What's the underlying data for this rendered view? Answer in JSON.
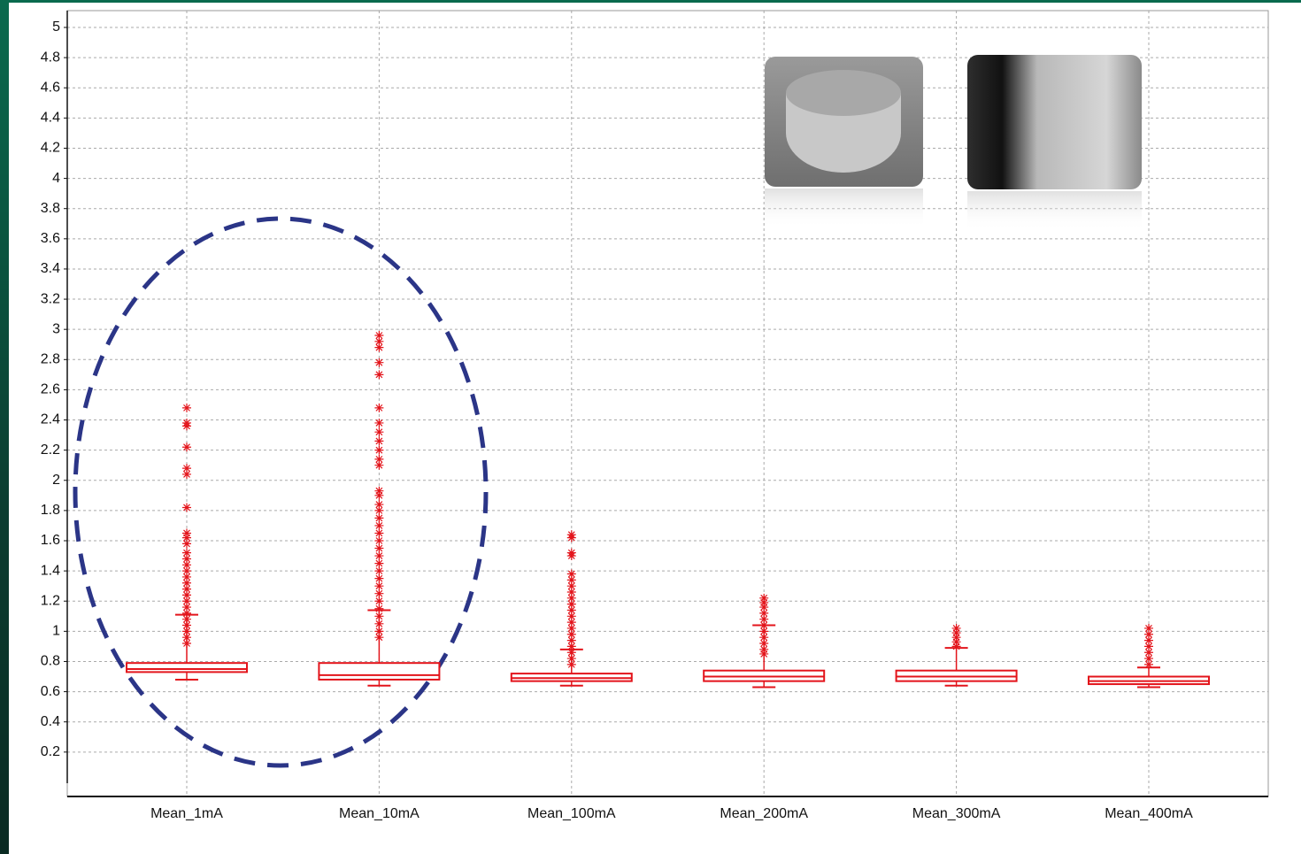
{
  "chart_data": {
    "type": "box",
    "categories": [
      "Mean_1mA",
      "Mean_10mA",
      "Mean_100mA",
      "Mean_200mA",
      "Mean_300mA",
      "Mean_400mA"
    ],
    "color": "#e3141b",
    "grid": true,
    "ylim": [
      -0.1,
      5
    ],
    "yticks": [
      0.2,
      0.4,
      0.6,
      0.8,
      1,
      1.2,
      1.4,
      1.6,
      1.8,
      2,
      2.2,
      2.4,
      2.6,
      2.8,
      3,
      3.2,
      3.4,
      3.6,
      3.8,
      4,
      4.2,
      4.4,
      4.6,
      4.8,
      5
    ],
    "boxes": [
      {
        "whisker_low": 0.68,
        "q1": 0.73,
        "median": 0.75,
        "q3": 0.79,
        "whisker_high": 1.11,
        "outliers": [
          0.92,
          0.96,
          1.0,
          1.04,
          1.08,
          1.12,
          1.16,
          1.2,
          1.24,
          1.28,
          1.32,
          1.36,
          1.4,
          1.44,
          1.48,
          1.52,
          1.58,
          1.62,
          1.65,
          1.82,
          2.04,
          2.08,
          2.22,
          2.36,
          2.38,
          2.48
        ]
      },
      {
        "whisker_low": 0.64,
        "q1": 0.68,
        "median": 0.71,
        "q3": 0.79,
        "whisker_high": 1.14,
        "outliers": [
          0.96,
          1.0,
          1.05,
          1.1,
          1.15,
          1.2,
          1.25,
          1.3,
          1.35,
          1.4,
          1.45,
          1.5,
          1.55,
          1.6,
          1.65,
          1.7,
          1.75,
          1.8,
          1.84,
          1.9,
          1.93,
          2.1,
          2.14,
          2.2,
          2.26,
          2.32,
          2.38,
          2.48,
          2.7,
          2.78,
          2.88,
          2.92,
          2.96
        ]
      },
      {
        "whisker_low": 0.64,
        "q1": 0.67,
        "median": 0.69,
        "q3": 0.72,
        "whisker_high": 0.88,
        "outliers": [
          0.78,
          0.82,
          0.86,
          0.9,
          0.94,
          0.98,
          1.02,
          1.06,
          1.1,
          1.14,
          1.18,
          1.22,
          1.26,
          1.3,
          1.34,
          1.38,
          1.5,
          1.52,
          1.62,
          1.64
        ]
      },
      {
        "whisker_low": 0.63,
        "q1": 0.67,
        "median": 0.7,
        "q3": 0.74,
        "whisker_high": 1.04,
        "outliers": [
          0.85,
          0.88,
          0.92,
          0.96,
          1.0,
          1.04,
          1.08,
          1.12,
          1.16,
          1.19,
          1.22
        ]
      },
      {
        "whisker_low": 0.64,
        "q1": 0.67,
        "median": 0.7,
        "q3": 0.74,
        "whisker_high": 0.89,
        "outliers": [
          0.9,
          0.93,
          0.96,
          0.99,
          1.02
        ]
      },
      {
        "whisker_low": 0.63,
        "q1": 0.65,
        "median": 0.67,
        "q3": 0.7,
        "whisker_high": 0.76,
        "outliers": [
          0.78,
          0.82,
          0.86,
          0.9,
          0.94,
          0.98,
          1.02
        ]
      }
    ]
  }
}
